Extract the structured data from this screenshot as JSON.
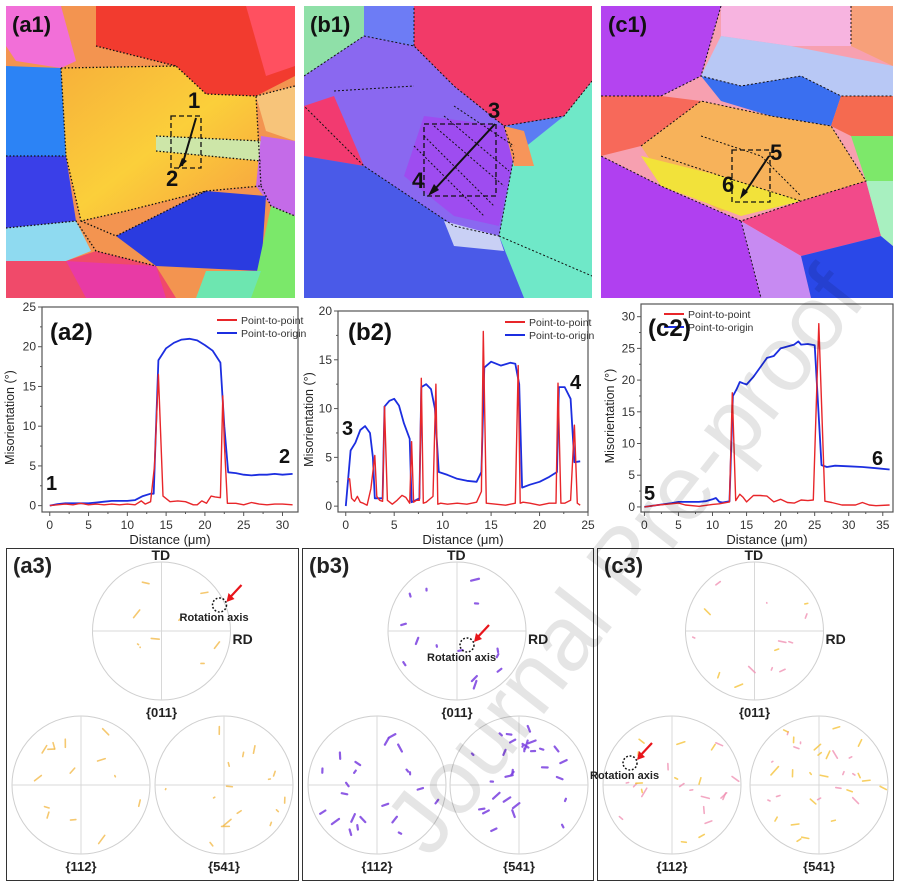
{
  "figure": {
    "maps": [
      {
        "label": "(a1)",
        "points": [
          "1",
          "2"
        ]
      },
      {
        "label": "(b1)",
        "points": [
          "3",
          "4"
        ]
      },
      {
        "label": "(c1)",
        "points": [
          "5",
          "6"
        ]
      }
    ],
    "pole_figures": [
      {
        "label": "(a3)",
        "top": "{011}",
        "bl": "{112}",
        "br": "{541}",
        "td": "TD",
        "rd": "RD",
        "rotation_axis": "Rotation axis",
        "color": "#f2b640"
      },
      {
        "label": "(b3)",
        "top": "{011}",
        "bl": "{112}",
        "br": "{541}",
        "td": "TD",
        "rd": "RD",
        "rotation_axis": "Rotation axis",
        "color": "#7a3fe0"
      },
      {
        "label": "(c3)",
        "top": "{011}",
        "bl": "{112}",
        "br": "{541}",
        "td": "TD",
        "rd": "RD",
        "rotation_axis": "Rotation axis",
        "color": "#f08cb0"
      }
    ],
    "watermark": "Journal Pre-proof"
  },
  "chart_data": [
    {
      "type": "line",
      "panel": "(a2)",
      "xlabel": "Distance (μm)",
      "ylabel": "Misorientation (°)",
      "xlim": [
        -1,
        32
      ],
      "ylim": [
        -0.8,
        25
      ],
      "xticks": [
        0,
        5,
        10,
        15,
        20,
        25,
        30
      ],
      "yticks": [
        0,
        5,
        10,
        15,
        20,
        25
      ],
      "start_label": "1",
      "end_label": "2",
      "legend": [
        "Point-to-point",
        "Point-to-origin"
      ],
      "legend_position": "top-right",
      "series": [
        {
          "name": "Point-to-point",
          "color": "#e8262a",
          "x": [
            0,
            1,
            2,
            3,
            4,
            5,
            6,
            7,
            8,
            9,
            10,
            11,
            11.8,
            12.3,
            13,
            13.5,
            14,
            14.6,
            15.5,
            16.5,
            17.5,
            18.5,
            19,
            19.6,
            20.2,
            20.8,
            21.3,
            22,
            22.3,
            22.5,
            22.9,
            24,
            25,
            26,
            27,
            28,
            29,
            30,
            31.3
          ],
          "y": [
            0,
            0.1,
            0.2,
            0.1,
            0.3,
            0.1,
            0.2,
            0.1,
            0.2,
            0.1,
            0.2,
            0.1,
            0.6,
            0.2,
            0.5,
            5,
            16.5,
            1.2,
            0.5,
            0.6,
            0.5,
            0.1,
            0.1,
            0.6,
            0.3,
            1.2,
            1.1,
            1.0,
            13.8,
            8,
            0.3,
            0.3,
            0.1,
            0.4,
            0.2,
            0.1,
            0.2,
            0.2,
            0.1
          ]
        },
        {
          "name": "Point-to-origin",
          "color": "#1c2ee0",
          "x": [
            0,
            1,
            2,
            3,
            4,
            5,
            6,
            7,
            8,
            9,
            10,
            11,
            12,
            13,
            13.4,
            14,
            15,
            16,
            17,
            18,
            19,
            20,
            21,
            22,
            22.5,
            23,
            24,
            25,
            26,
            27,
            28,
            29,
            30,
            31.3
          ],
          "y": [
            0,
            0.2,
            0.3,
            0.3,
            0.3,
            0.3,
            0.4,
            0.5,
            0.6,
            0.6,
            0.6,
            0.7,
            1.2,
            1.5,
            1.5,
            18.3,
            19.8,
            20.5,
            20.9,
            21.0,
            20.8,
            20.2,
            19.5,
            18,
            10,
            4.2,
            4.1,
            3.9,
            3.8,
            3.9,
            3.9,
            4.0,
            3.9,
            4.0
          ]
        }
      ]
    },
    {
      "type": "line",
      "panel": "(b2)",
      "xlabel": "Distance (μm)",
      "ylabel": "Misorientation (°)",
      "xlim": [
        -0.8,
        25
      ],
      "ylim": [
        -0.6,
        20
      ],
      "xticks": [
        0,
        5,
        10,
        15,
        20,
        25
      ],
      "yticks": [
        0,
        5,
        10,
        15,
        20
      ],
      "start_label": "3",
      "end_label": "4",
      "legend": [
        "Point-to-point",
        "Point-to-origin"
      ],
      "legend_position": "top-right",
      "series": [
        {
          "name": "Point-to-point",
          "color": "#e8262a",
          "x": [
            0.2,
            0.4,
            0.6,
            0.9,
            1.2,
            1.5,
            1.8,
            2.2,
            2.6,
            3.0,
            3.2,
            3.5,
            3.8,
            4.0,
            4.3,
            4.8,
            5.3,
            5.8,
            6.2,
            6.6,
            6.8,
            7.0,
            7.3,
            7.6,
            7.8,
            8.0,
            8.3,
            9.0,
            9.3,
            9.5,
            9.8,
            10.5,
            11.5,
            12.5,
            13.5,
            14.0,
            14.2,
            14.5,
            15.5,
            16.5,
            17.5,
            17.8,
            18.0,
            18.3,
            19,
            20,
            21,
            21.7,
            21.9,
            22.2,
            22.6,
            23.2,
            23.6,
            23.9,
            24.2
          ],
          "y": [
            2.8,
            2.8,
            0.8,
            0.5,
            1.0,
            0.4,
            0.3,
            0.1,
            1.8,
            5.2,
            1.0,
            0.6,
            0.5,
            10.2,
            0.6,
            0.2,
            0.6,
            1.1,
            0.9,
            0.3,
            6.6,
            0.4,
            0.6,
            0.6,
            13.1,
            0.3,
            0.4,
            1.0,
            12.5,
            0.2,
            0.3,
            0.2,
            0.3,
            0.2,
            0.4,
            1.5,
            17.9,
            0.3,
            0.2,
            0.1,
            0.3,
            14.4,
            0.3,
            0.4,
            0.3,
            0.1,
            0.3,
            0.3,
            12.6,
            0.3,
            0.3,
            0.6,
            8.3,
            0.3,
            0.1
          ]
        },
        {
          "name": "Point-to-origin",
          "color": "#1c2ee0",
          "x": [
            0,
            0.5,
            1.0,
            1.5,
            2.0,
            2.5,
            2.8,
            3.0,
            3.5,
            3.8,
            4.0,
            4.5,
            5.0,
            5.5,
            6.0,
            6.6,
            6.8,
            7.2,
            7.6,
            7.8,
            8.3,
            8.8,
            9.2,
            9.6,
            10.5,
            11.5,
            12.5,
            13.5,
            14.0,
            14.3,
            15.0,
            16.0,
            17.0,
            17.5,
            17.9,
            18.2,
            19.0,
            20.0,
            21.0,
            21.8,
            22.0,
            22.6,
            23.2,
            23.6,
            24.2
          ],
          "y": [
            0,
            5.7,
            6.5,
            7.8,
            8.2,
            7.5,
            5,
            0.8,
            0.8,
            0.8,
            10.2,
            10.8,
            11.0,
            10.3,
            8.5,
            6.9,
            0.4,
            0.6,
            0.8,
            12.2,
            12.5,
            12.0,
            10.0,
            3.5,
            3.2,
            2.8,
            2.6,
            2.5,
            3.5,
            14.2,
            14.8,
            14.4,
            14.7,
            14.6,
            12.5,
            1.9,
            2.2,
            2.5,
            3.0,
            3.5,
            12.2,
            12.2,
            11.0,
            4.5,
            4.6
          ]
        }
      ]
    },
    {
      "type": "line",
      "panel": "(c2)",
      "xlabel": "Distance (μm)",
      "ylabel": "Misorientation (°)",
      "xlim": [
        -0.5,
        36.5
      ],
      "ylim": [
        -0.8,
        32
      ],
      "xticks": [
        0,
        5,
        10,
        15,
        20,
        25,
        30,
        35
      ],
      "yticks": [
        0,
        5,
        10,
        15,
        20,
        25,
        30
      ],
      "start_label": "5",
      "end_label": "6",
      "legend": [
        "Point-to-point",
        "Point-to-origin"
      ],
      "legend_position": "top-left",
      "series": [
        {
          "name": "Point-to-point",
          "color": "#e8262a",
          "x": [
            0,
            2,
            4,
            5,
            6,
            8,
            10,
            11,
            12.5,
            12.9,
            13.4,
            14,
            14.5,
            15,
            16,
            17,
            18,
            19,
            20,
            21,
            22,
            23,
            24,
            24.8,
            25.6,
            26.5,
            27.5,
            29,
            31,
            32,
            33,
            34,
            36
          ],
          "y": [
            0,
            0.3,
            0.5,
            0.6,
            0.3,
            0.1,
            0.4,
            0.5,
            0.8,
            18,
            1.0,
            2.0,
            1.5,
            0.8,
            1.8,
            1.8,
            1.7,
            0.8,
            1.2,
            0.7,
            0.6,
            1.1,
            1.0,
            1.1,
            28.9,
            0.9,
            0.7,
            0.3,
            0.3,
            0.7,
            0.3,
            0.2,
            0.3
          ]
        },
        {
          "name": "Point-to-origin",
          "color": "#1c2ee0",
          "x": [
            0,
            2,
            4,
            5,
            6,
            8,
            9,
            10,
            10.5,
            11,
            11.5,
            12.5,
            13.0,
            13.5,
            14.0,
            14.5,
            15.0,
            16,
            17,
            18,
            19,
            20,
            21,
            22,
            22.6,
            23,
            24,
            25,
            26,
            26.8,
            28,
            30,
            32,
            34,
            36
          ],
          "y": [
            0,
            0.3,
            0.6,
            0.8,
            0.8,
            0.8,
            0.9,
            1.2,
            1.4,
            0.8,
            0.7,
            0.9,
            17.5,
            18.5,
            19.7,
            19.5,
            19.3,
            20.5,
            22,
            23.5,
            23.8,
            25,
            25.3,
            25.6,
            26.1,
            25.6,
            25.7,
            25.5,
            6.6,
            6.3,
            6.5,
            6.4,
            6.3,
            6.1,
            5.9
          ]
        }
      ]
    }
  ]
}
